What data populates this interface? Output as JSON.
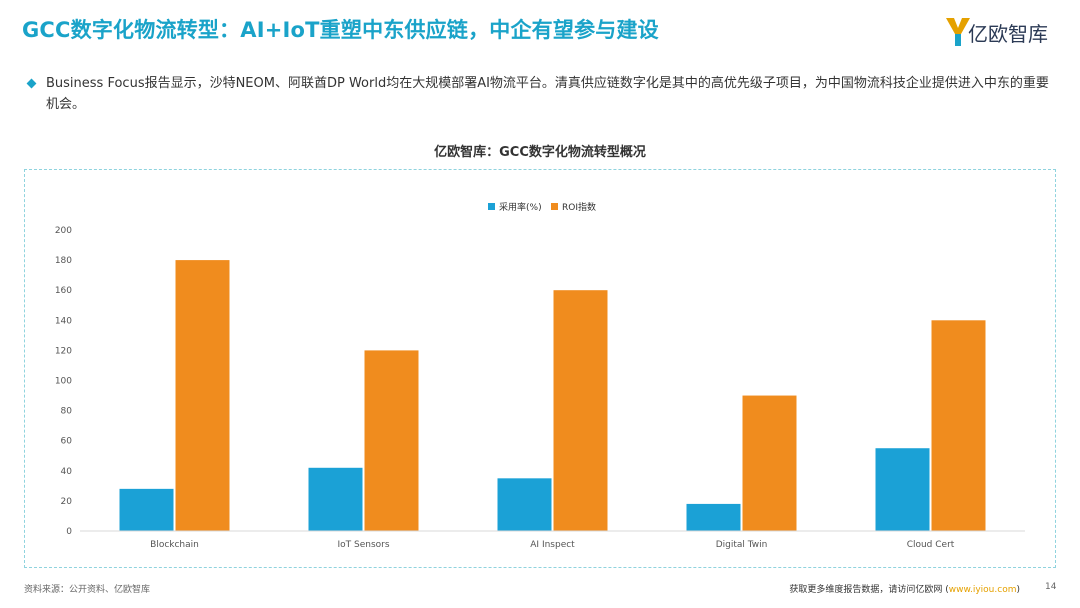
{
  "page": {
    "title": "GCC数字化物流转型：AI+IoT重塑中东供应链，中企有望参与建设",
    "logo_text": "亿欧智库",
    "bullet": "Business Focus报告显示，沙特NEOM、阿联酋DP World均在大规模部署AI物流平台。清真供应链数字化是其中的高优先级子项目，为中国物流科技企业提供进入中东的重要机会。",
    "source": "资料来源：公开资料、亿欧智库",
    "footer_prefix": "获取更多维度报告数据，请访问亿欧网 (",
    "footer_link": "www.iyiou.com",
    "footer_suffix": ")",
    "page_number": "14"
  },
  "colors": {
    "accent": "#1aa3c9",
    "series_adoption": "#1ba1d6",
    "series_roi": "#f08c1e",
    "axis": "#d9d9d9",
    "tick_text": "#555555"
  },
  "chart_data": {
    "type": "bar",
    "title": "亿欧智库：GCC数字化物流转型概况",
    "categories": [
      "Blockchain",
      "IoT Sensors",
      "AI Inspect",
      "Digital Twin",
      "Cloud Cert"
    ],
    "series": [
      {
        "name": "采用率(%)",
        "values": [
          28,
          42,
          35,
          18,
          55
        ]
      },
      {
        "name": "ROI指数",
        "values": [
          180,
          120,
          160,
          90,
          140
        ]
      }
    ],
    "ylim": [
      0,
      200
    ],
    "yticks": [
      0,
      20,
      40,
      60,
      80,
      100,
      120,
      140,
      160,
      180,
      200
    ],
    "xlabel": "",
    "ylabel": "",
    "grid": false,
    "legend": "top-center"
  }
}
